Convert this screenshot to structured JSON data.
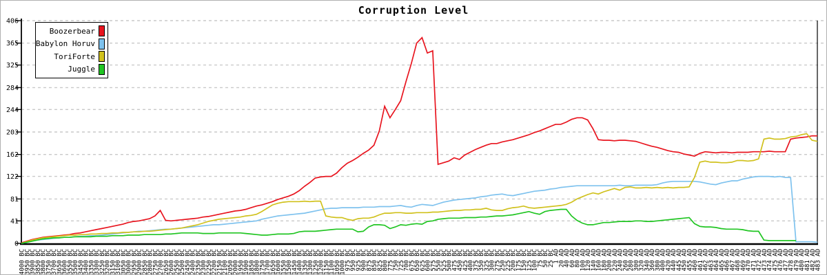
{
  "chart_data": {
    "type": "line",
    "title": "Corruption Level",
    "xlabel": "",
    "ylabel": "",
    "ylim": [
      0,
      406
    ],
    "y_ticks": [
      0,
      41,
      81,
      122,
      162,
      203,
      244,
      284,
      325,
      365,
      406
    ],
    "grid": "horizontal-dashed",
    "legend_position": "top-left",
    "x_labels": [
      "4000 BC",
      "3950 BC",
      "3900 BC",
      "3850 BC",
      "3800 BC",
      "3750 BC",
      "3700 BC",
      "3650 BC",
      "3600 BC",
      "3550 BC",
      "3500 BC",
      "3450 BC",
      "3400 BC",
      "3350 BC",
      "3300 BC",
      "3250 BC",
      "3200 BC",
      "3150 BC",
      "3100 BC",
      "3050 BC",
      "3000 BC",
      "2950 BC",
      "2900 BC",
      "2850 BC",
      "2800 BC",
      "2750 BC",
      "2700 BC",
      "2650 BC",
      "2600 BC",
      "2550 BC",
      "2500 BC",
      "2450 BC",
      "2400 BC",
      "2350 BC",
      "2300 BC",
      "2250 BC",
      "2200 BC",
      "2150 BC",
      "2100 BC",
      "2050 BC",
      "2000 BC",
      "1950 BC",
      "1900 BC",
      "1850 BC",
      "1800 BC",
      "1750 BC",
      "1700 BC",
      "1650 BC",
      "1600 BC",
      "1550 BC",
      "1500 BC",
      "1450 BC",
      "1400 BC",
      "1350 BC",
      "1300 BC",
      "1250 BC",
      "1200 BC",
      "1150 BC",
      "1100 BC",
      "1050 BC",
      "1000 BC",
      "975 BC",
      "950 BC",
      "925 BC",
      "900 BC",
      "875 BC",
      "850 BC",
      "825 BC",
      "800 BC",
      "775 BC",
      "750 BC",
      "725 BC",
      "700 BC",
      "675 BC",
      "650 BC",
      "625 BC",
      "600 BC",
      "575 BC",
      "550 BC",
      "525 BC",
      "500 BC",
      "475 BC",
      "450 BC",
      "425 BC",
      "400 BC",
      "375 BC",
      "350 BC",
      "325 BC",
      "300 BC",
      "275 BC",
      "250 BC",
      "225 BC",
      "200 BC",
      "175 BC",
      "150 BC",
      "125 BC",
      "100 BC",
      "75 BC",
      "50 BC",
      "25 BC",
      "1 AD",
      "20 AD",
      "40 AD",
      "60 AD",
      "80 AD",
      "100 AD",
      "120 AD",
      "140 AD",
      "160 AD",
      "180 AD",
      "200 AD",
      "220 AD",
      "240 AD",
      "260 AD",
      "280 AD",
      "300 AD",
      "320 AD",
      "340 AD",
      "360 AD",
      "380 AD",
      "400 AD",
      "420 AD",
      "440 AD",
      "445 AD",
      "450 AD",
      "455 AD",
      "460 AD",
      "461 AD",
      "462 AD",
      "463 AD",
      "464 AD",
      "465 AD",
      "466 AD",
      "467 AD",
      "468 AD",
      "469 AD",
      "470 AD",
      "471 AD",
      "472 AD",
      "473 AD",
      "474 AD",
      "475 AD",
      "476 AD",
      "477 AD",
      "478 AD",
      "479 AD",
      "480 AD",
      "481 AD",
      "482 AD",
      "483 AD"
    ],
    "series": [
      {
        "name": "Boozerbear",
        "color": "#e8141e",
        "values": [
          1,
          4,
          7,
          9,
          11,
          12,
          13,
          14,
          15,
          16,
          18,
          19,
          21,
          23,
          25,
          27,
          29,
          31,
          33,
          35,
          38,
          40,
          41,
          43,
          45,
          50,
          60,
          42,
          41,
          42,
          43,
          44,
          45,
          46,
          48,
          49,
          51,
          53,
          55,
          57,
          59,
          60,
          62,
          65,
          68,
          70,
          73,
          76,
          80,
          83,
          86,
          90,
          96,
          104,
          111,
          119,
          121,
          122,
          122,
          128,
          138,
          146,
          151,
          157,
          164,
          170,
          179,
          205,
          250,
          229,
          244,
          260,
          295,
          328,
          365,
          375,
          347,
          351,
          144,
          147,
          150,
          156,
          153,
          161,
          166,
          171,
          175,
          179,
          182,
          182,
          185,
          187,
          189,
          192,
          195,
          198,
          202,
          205,
          209,
          213,
          217,
          217,
          221,
          226,
          229,
          229,
          225,
          209,
          189,
          188,
          188,
          187,
          188,
          188,
          187,
          186,
          183,
          180,
          177,
          175,
          172,
          169,
          167,
          166,
          163,
          161,
          159,
          164,
          167,
          166,
          165,
          166,
          166,
          165,
          166,
          166,
          166,
          167,
          167,
          167,
          168,
          167,
          167,
          167,
          190,
          192,
          193,
          194,
          196,
          196
        ]
      },
      {
        "name": "Babylon Horuv",
        "color": "#7ec2ee",
        "values": [
          0,
          2,
          4,
          6,
          7,
          8,
          9,
          10,
          11,
          11,
          12,
          13,
          13,
          14,
          14,
          15,
          16,
          17,
          18,
          19,
          20,
          21,
          22,
          22,
          23,
          24,
          25,
          26,
          26,
          27,
          28,
          29,
          30,
          31,
          32,
          33,
          34,
          34,
          35,
          36,
          37,
          38,
          39,
          40,
          41,
          44,
          46,
          48,
          50,
          51,
          52,
          53,
          54,
          55,
          57,
          59,
          61,
          63,
          64,
          64,
          65,
          65,
          65,
          65,
          66,
          66,
          66,
          67,
          67,
          67,
          68,
          69,
          67,
          66,
          69,
          71,
          70,
          69,
          72,
          75,
          77,
          79,
          80,
          81,
          82,
          83,
          85,
          86,
          88,
          89,
          90,
          88,
          87,
          89,
          91,
          93,
          95,
          96,
          97,
          99,
          100,
          102,
          103,
          104,
          105,
          105,
          105,
          105,
          105,
          105,
          105,
          105,
          106,
          105,
          105,
          106,
          106,
          106,
          106,
          107,
          110,
          112,
          113,
          113,
          113,
          113,
          113,
          112,
          110,
          108,
          107,
          110,
          112,
          114,
          114,
          117,
          119,
          121,
          122,
          122,
          122,
          121,
          122,
          120,
          120,
          3,
          3,
          3,
          3,
          2
        ]
      },
      {
        "name": "ToriForte",
        "color": "#d0c11c",
        "values": [
          0,
          3,
          6,
          8,
          10,
          11,
          12,
          13,
          14,
          15,
          15,
          16,
          16,
          17,
          17,
          18,
          18,
          19,
          19,
          20,
          20,
          21,
          21,
          22,
          22,
          23,
          24,
          25,
          26,
          27,
          28,
          30,
          32,
          34,
          37,
          40,
          42,
          44,
          45,
          46,
          47,
          48,
          50,
          51,
          53,
          58,
          64,
          70,
          73,
          75,
          76,
          76,
          76,
          77,
          76,
          77,
          77,
          50,
          48,
          47,
          47,
          44,
          42,
          45,
          46,
          46,
          48,
          52,
          55,
          55,
          56,
          56,
          55,
          55,
          56,
          56,
          56,
          57,
          57,
          58,
          59,
          60,
          60,
          61,
          61,
          62,
          62,
          64,
          61,
          60,
          60,
          63,
          65,
          66,
          68,
          65,
          64,
          65,
          66,
          67,
          68,
          69,
          71,
          75,
          81,
          85,
          89,
          92,
          90,
          94,
          97,
          100,
          97,
          102,
          103,
          101,
          101,
          102,
          101,
          102,
          101,
          102,
          101,
          102,
          102,
          103,
          120,
          148,
          150,
          148,
          148,
          147,
          147,
          148,
          151,
          151,
          150,
          151,
          154,
          190,
          192,
          190,
          190,
          191,
          194,
          195,
          198,
          200,
          188,
          186
        ]
      },
      {
        "name": "Juggle",
        "color": "#20c522",
        "values": [
          0,
          2,
          4,
          6,
          8,
          9,
          10,
          10,
          11,
          11,
          12,
          12,
          12,
          12,
          13,
          13,
          13,
          14,
          14,
          14,
          15,
          15,
          15,
          16,
          16,
          16,
          16,
          17,
          17,
          18,
          19,
          19,
          19,
          19,
          18,
          18,
          18,
          19,
          19,
          19,
          19,
          19,
          18,
          17,
          16,
          15,
          15,
          16,
          17,
          17,
          17,
          18,
          21,
          22,
          22,
          22,
          23,
          24,
          25,
          26,
          26,
          26,
          26,
          21,
          22,
          30,
          34,
          34,
          33,
          27,
          30,
          34,
          33,
          35,
          36,
          35,
          40,
          41,
          44,
          45,
          46,
          46,
          46,
          47,
          47,
          47,
          48,
          48,
          49,
          50,
          50,
          51,
          52,
          54,
          56,
          58,
          55,
          53,
          58,
          60,
          61,
          62,
          62,
          50,
          42,
          37,
          34,
          34,
          36,
          38,
          38,
          39,
          40,
          40,
          40,
          41,
          41,
          40,
          40,
          41,
          42,
          43,
          44,
          45,
          46,
          47,
          36,
          31,
          30,
          30,
          29,
          27,
          26,
          26,
          26,
          25,
          23,
          22,
          22,
          6,
          5,
          5,
          5,
          5,
          5,
          5,
          null,
          null,
          null,
          null
        ]
      }
    ]
  }
}
